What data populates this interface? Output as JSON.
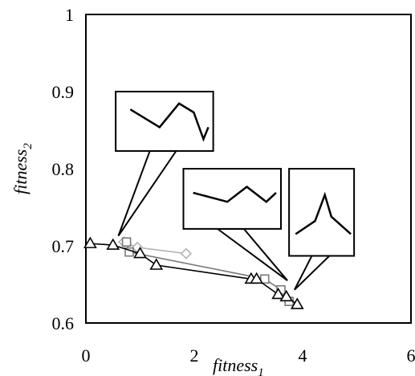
{
  "chart_data": {
    "type": "scatter",
    "xlabel": {
      "base": "fitness",
      "sub": "1"
    },
    "ylabel": {
      "base": "fitness",
      "sub": "2"
    },
    "xlim": [
      0,
      6
    ],
    "ylim": [
      0.6,
      1.0
    ],
    "x_ticks": [
      "0",
      "2",
      "4",
      "6"
    ],
    "y_ticks": [
      "0.6",
      "0.7",
      "0.8",
      "0.9",
      "1"
    ],
    "grid": false,
    "series": [
      {
        "marker": "diamond",
        "color": "#b4b4b4",
        "points": [
          [
            0.7,
            0.705
          ],
          [
            0.95,
            0.698
          ],
          [
            1.85,
            0.69
          ]
        ]
      },
      {
        "marker": "square",
        "color": "#7a7a7a",
        "points": [
          [
            0.75,
            0.705
          ],
          [
            0.8,
            0.692
          ],
          [
            3.3,
            0.657
          ],
          [
            3.6,
            0.643
          ],
          [
            3.75,
            0.628
          ]
        ]
      },
      {
        "marker": "triangle",
        "color": "#000000",
        "points": [
          [
            0.08,
            0.703
          ],
          [
            0.5,
            0.701
          ],
          [
            1.0,
            0.69
          ],
          [
            1.3,
            0.675
          ],
          [
            3.05,
            0.657
          ],
          [
            3.15,
            0.657
          ],
          [
            3.55,
            0.637
          ],
          [
            3.7,
            0.634
          ],
          [
            3.9,
            0.624
          ]
        ]
      }
    ],
    "callouts": [
      {
        "pointer": [
          0.6,
          0.713
        ],
        "box": {
          "x0": 0.55,
          "y0": 0.9,
          "x1": 2.35,
          "y1": 0.823
        },
        "shape_polyline": [
          [
            0.15,
            0.3
          ],
          [
            0.45,
            0.6
          ],
          [
            0.65,
            0.2
          ],
          [
            0.8,
            0.35
          ],
          [
            0.9,
            0.8
          ],
          [
            0.95,
            0.6
          ]
        ]
      },
      {
        "pointer": [
          3.72,
          0.655
        ],
        "box": {
          "x0": 1.8,
          "y0": 0.8,
          "x1": 3.6,
          "y1": 0.722
        },
        "shape_polyline": [
          [
            0.1,
            0.4
          ],
          [
            0.45,
            0.55
          ],
          [
            0.65,
            0.3
          ],
          [
            0.85,
            0.55
          ],
          [
            0.95,
            0.4
          ]
        ]
      },
      {
        "pointer": [
          3.85,
          0.643
        ],
        "box": {
          "x0": 3.75,
          "y0": 0.8,
          "x1": 4.95,
          "y1": 0.687
        },
        "shape_polyline": [
          [
            0.1,
            0.75
          ],
          [
            0.4,
            0.6
          ],
          [
            0.55,
            0.3
          ],
          [
            0.65,
            0.55
          ],
          [
            0.95,
            0.75
          ]
        ]
      }
    ]
  }
}
